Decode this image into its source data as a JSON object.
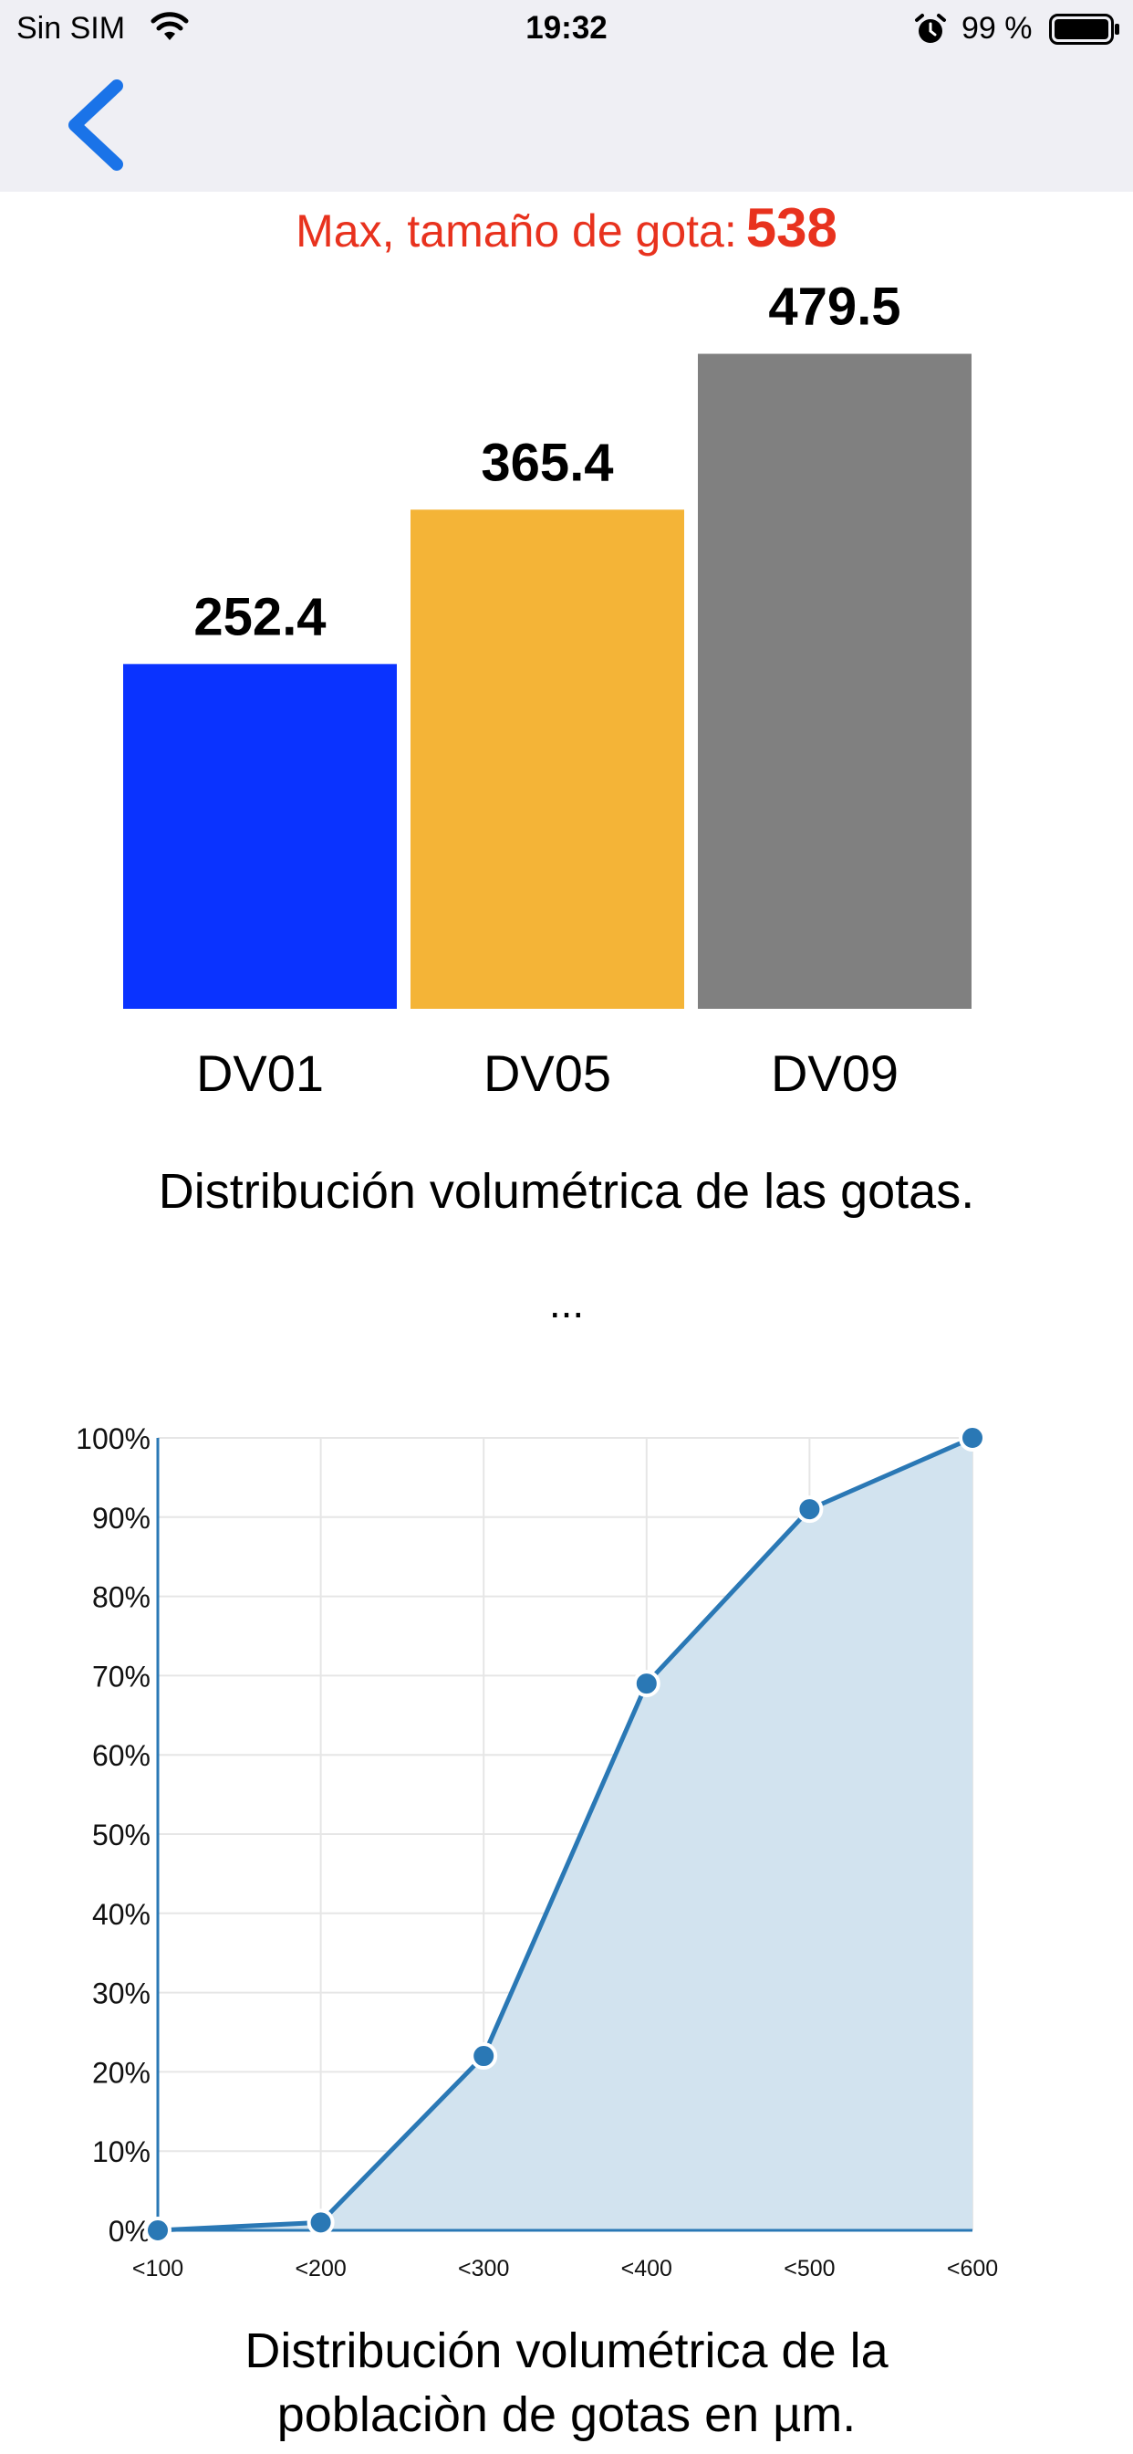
{
  "status_bar": {
    "carrier": "Sin SIM",
    "time": "19:32",
    "battery_percent": "99 %",
    "wifi_icon": "wifi-icon",
    "alarm_icon": "alarm-icon",
    "battery_icon": "battery-icon"
  },
  "nav": {
    "back_icon": "chevron-left-icon",
    "accent_color": "#1a73e8"
  },
  "summary": {
    "max_label": "Max, tamaño de gota:",
    "max_value": "538",
    "color": "#e8321e"
  },
  "chart_data": [
    {
      "type": "bar",
      "categories": [
        "DV01",
        "DV05",
        "DV09"
      ],
      "values": [
        252.4,
        365.4,
        479.5
      ],
      "value_labels": [
        "252.4",
        "365.4",
        "479.5"
      ],
      "colors": [
        "#0a33ff",
        "#f4b437",
        "#808080"
      ],
      "title": "",
      "caption": "Distribución volumétrica de las gotas.",
      "ylim": [
        0,
        538
      ],
      "grid": false,
      "legend": "none"
    },
    {
      "type": "area",
      "categories": [
        "<100",
        "<200",
        "<300",
        "<400",
        "<500",
        "<600"
      ],
      "values": [
        0,
        1,
        22,
        69,
        91,
        100
      ],
      "y_ticks": [
        "0%",
        "10%",
        "20%",
        "30%",
        "40%",
        "50%",
        "60%",
        "70%",
        "80%",
        "90%",
        "100%"
      ],
      "ylim": [
        0,
        100
      ],
      "line_color": "#2a78b5",
      "fill_color": "#d2e3ef",
      "grid": true,
      "legend": "none",
      "caption_lines": [
        "Distribución volumétrica de la",
        "poblaciòn de gotas en µm."
      ]
    }
  ],
  "separator": "..."
}
